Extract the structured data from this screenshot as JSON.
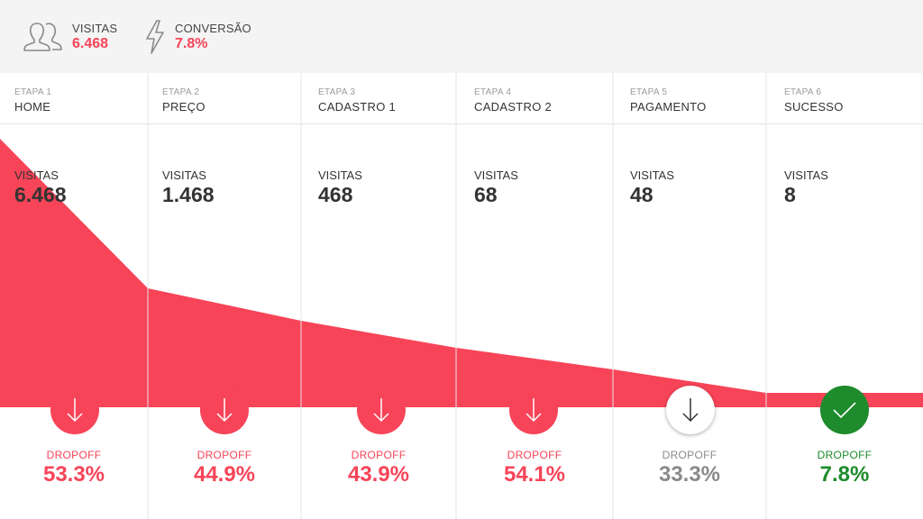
{
  "summary": {
    "visits": {
      "icon": "users-icon",
      "label": "VISITAS",
      "value": "6.468"
    },
    "conversion": {
      "icon": "lightning-icon",
      "label": "CONVERSÃO",
      "value": "7.8%"
    }
  },
  "colors": {
    "accent": "#f74458",
    "success": "#1e8b2c",
    "neutral": "#8a8a8a",
    "text": "#333333"
  },
  "stages": [
    {
      "step": "ETAPA 1",
      "name": "HOME",
      "visits_label": "VISITAS",
      "visits": "6.468",
      "dropoff_label": "DROPOFF",
      "dropoff": "53.3%",
      "status": "drop",
      "icon": "arrow-down-icon"
    },
    {
      "step": "ETAPA 2",
      "name": "PREÇO",
      "visits_label": "VISITAS",
      "visits": "1.468",
      "dropoff_label": "DROPOFF",
      "dropoff": "44.9%",
      "status": "drop",
      "icon": "arrow-down-icon"
    },
    {
      "step": "ETAPA 3",
      "name": "CADASTRO 1",
      "visits_label": "VISITAS",
      "visits": "468",
      "dropoff_label": "DROPOFF",
      "dropoff": "43.9%",
      "status": "drop",
      "icon": "arrow-down-icon"
    },
    {
      "step": "ETAPA 4",
      "name": "CADASTRO 2",
      "visits_label": "VISITAS",
      "visits": "68",
      "dropoff_label": "DROPOFF",
      "dropoff": "54.1%",
      "status": "drop",
      "icon": "arrow-down-icon"
    },
    {
      "step": "ETAPA 5",
      "name": "PAGAMENTO",
      "visits_label": "VISITAS",
      "visits": "48",
      "dropoff_label": "DROPOFF",
      "dropoff": "33.3%",
      "status": "neutral",
      "icon": "arrow-down-icon"
    },
    {
      "step": "ETAPA 6",
      "name": "SUCESSO",
      "visits_label": "VISITAS",
      "visits": "8",
      "dropoff_label": "DROPOFF",
      "dropoff": "7.8%",
      "status": "success",
      "icon": "checkmark-icon"
    }
  ]
}
